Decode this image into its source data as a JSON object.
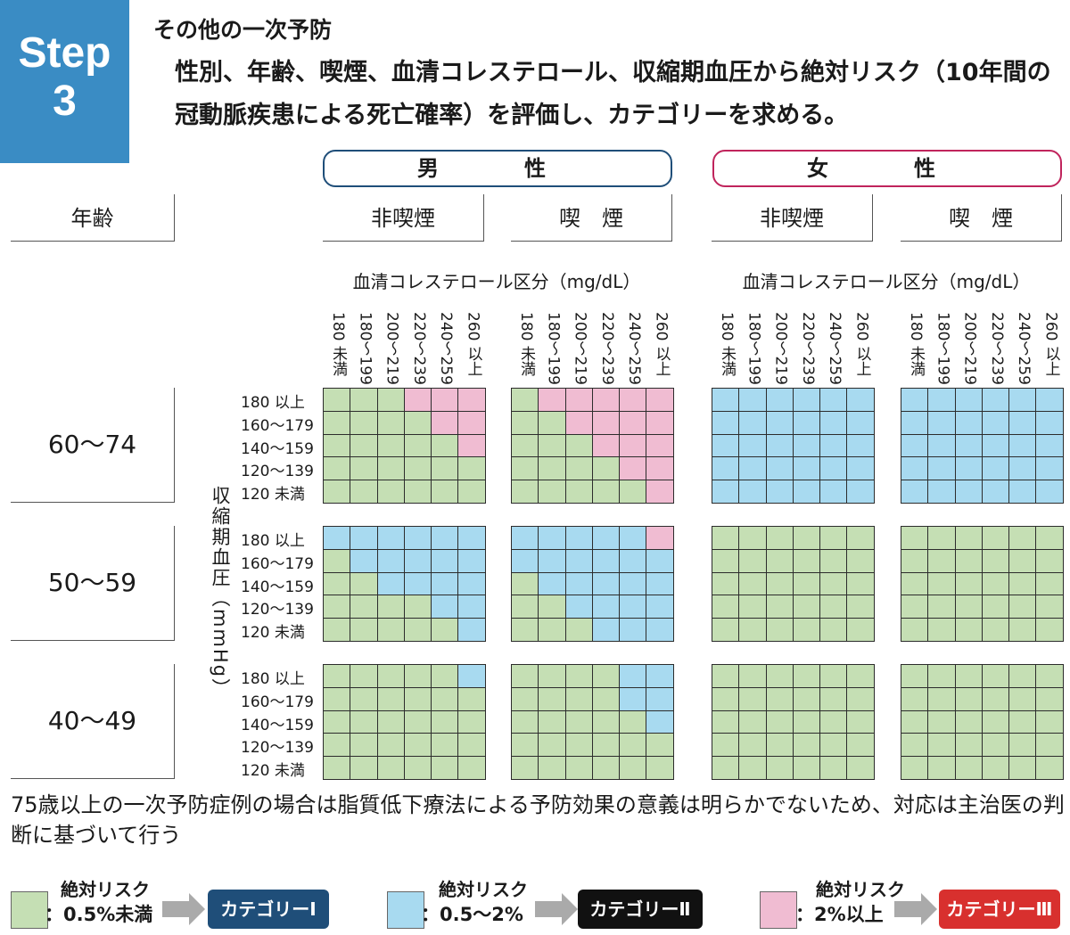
{
  "step": {
    "word": "Step",
    "number": "3"
  },
  "section_title": "その他の一次予防",
  "description": "性別、年齢、喫煙、血清コレステロール、収縮期血圧から絶対リスク（10年間の冠動脈疾患による死亡確率）を評価し、カテゴリーを求める。",
  "header": {
    "age": "年齢",
    "male": "男　性",
    "female": "女　性",
    "non_smoker": "非喫煙",
    "smoker": "喫　煙"
  },
  "cholesterol_label": "血清コレステロール区分（mg/dL）",
  "cholesterol_ticks": [
    "180 未満",
    "180〜199",
    "200〜219",
    "220〜239",
    "240〜259",
    "260 以上"
  ],
  "bp_label": "収縮期血圧（mmHg）",
  "bp_ticks": [
    "180 以上",
    "160〜179",
    "140〜159",
    "120〜139",
    "120 未満"
  ],
  "age_groups": [
    "60〜74",
    "50〜59",
    "40〜49"
  ],
  "colors": {
    "1": "#c5dfb4",
    "2": "#a8daf0",
    "3": "#f0bcd2",
    "male": "#1f4e79",
    "female": "#c0245c"
  },
  "grids": {
    "60-74": {
      "male_non": [
        "111333",
        "111133",
        "111113",
        "111111",
        "111111"
      ],
      "male_smk": [
        "133333",
        "113333",
        "111333",
        "111133",
        "111113"
      ],
      "female_non": [
        "222222",
        "222222",
        "222222",
        "222222",
        "222222"
      ],
      "female_smk": [
        "222222",
        "222222",
        "222222",
        "222222",
        "222222"
      ]
    },
    "50-59": {
      "male_non": [
        "222222",
        "122222",
        "112222",
        "111122",
        "111112"
      ],
      "male_smk": [
        "222223",
        "222222",
        "122222",
        "112222",
        "111222"
      ],
      "female_non": [
        "111111",
        "111111",
        "111111",
        "111111",
        "111111"
      ],
      "female_smk": [
        "111111",
        "111111",
        "111111",
        "111111",
        "111111"
      ]
    },
    "40-49": {
      "male_non": [
        "111112",
        "111111",
        "111111",
        "111111",
        "111111"
      ],
      "male_smk": [
        "111122",
        "111122",
        "111112",
        "111111",
        "111111"
      ],
      "female_non": [
        "111111",
        "111111",
        "111111",
        "111111",
        "111111"
      ],
      "female_smk": [
        "111111",
        "111111",
        "111111",
        "111111",
        "111111"
      ]
    }
  },
  "note": "75歳以上の一次予防症例の場合は脂質低下療法による予防効果の意義は明らかでないため、対応は主治医の判断に基づいて行う",
  "legend": [
    {
      "title": "絶対リスク",
      "range": "：0.5%未満",
      "category": "カテゴリーⅠ",
      "swatch": "#c5dfb4",
      "cat_color": "#1f4e79"
    },
    {
      "title": "絶対リスク",
      "range": "：0.5〜2%",
      "category": "カテゴリーⅡ",
      "swatch": "#a8daf0",
      "cat_color": "#111111"
    },
    {
      "title": "絶対リスク",
      "range": "：2%以上",
      "category": "カテゴリーⅢ",
      "swatch": "#f0bcd2",
      "cat_color": "#d8302e"
    }
  ]
}
